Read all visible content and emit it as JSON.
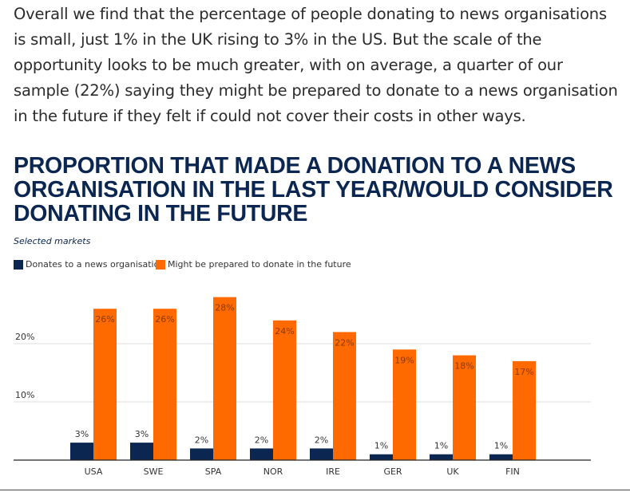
{
  "article": {
    "intro": "Overall we find that the percentage of people donating to news organisations is small, just 1% in the UK rising to 3% in the US. But the scale of the opportunity looks to be much greater, with on average, a quarter of our sample (22%) saying they might be prepared to donate to a news organisation in the future if they felt if could not cover their costs in other ways."
  },
  "colors": {
    "series1": "#0b2650",
    "series2": "#ff6a00",
    "title": "#0b2650",
    "grid": "#dddddd",
    "axis": "#222222"
  },
  "chart_data": {
    "type": "bar",
    "title": "PROPORTION THAT MADE A DONATION TO A NEWS ORGANISATION IN THE LAST YEAR/WOULD CONSIDER DONATING IN THE FUTURE",
    "subtitle": "Selected markets",
    "categories": [
      "USA",
      "SWE",
      "SPA",
      "NOR",
      "IRE",
      "GER",
      "UK",
      "FIN"
    ],
    "series": [
      {
        "name": "Donates to a news organisation",
        "values": [
          3,
          3,
          2,
          2,
          2,
          1,
          1,
          1
        ],
        "labels": [
          "3%",
          "3%",
          "2%",
          "2%",
          "2%",
          "1%",
          "1%",
          "1%"
        ]
      },
      {
        "name": "Might be prepared to donate in the future",
        "values": [
          26,
          26,
          28,
          24,
          22,
          19,
          18,
          17
        ],
        "labels": [
          "26%",
          "26%",
          "28%",
          "24%",
          "22%",
          "19%",
          "18%",
          "17%"
        ]
      }
    ],
    "yticks": [
      10,
      20
    ],
    "ytick_labels": [
      "10%",
      "20%"
    ],
    "ylim": [
      0,
      30
    ],
    "grid": true,
    "legend_position": "top-left",
    "xlabel": "",
    "ylabel": ""
  }
}
